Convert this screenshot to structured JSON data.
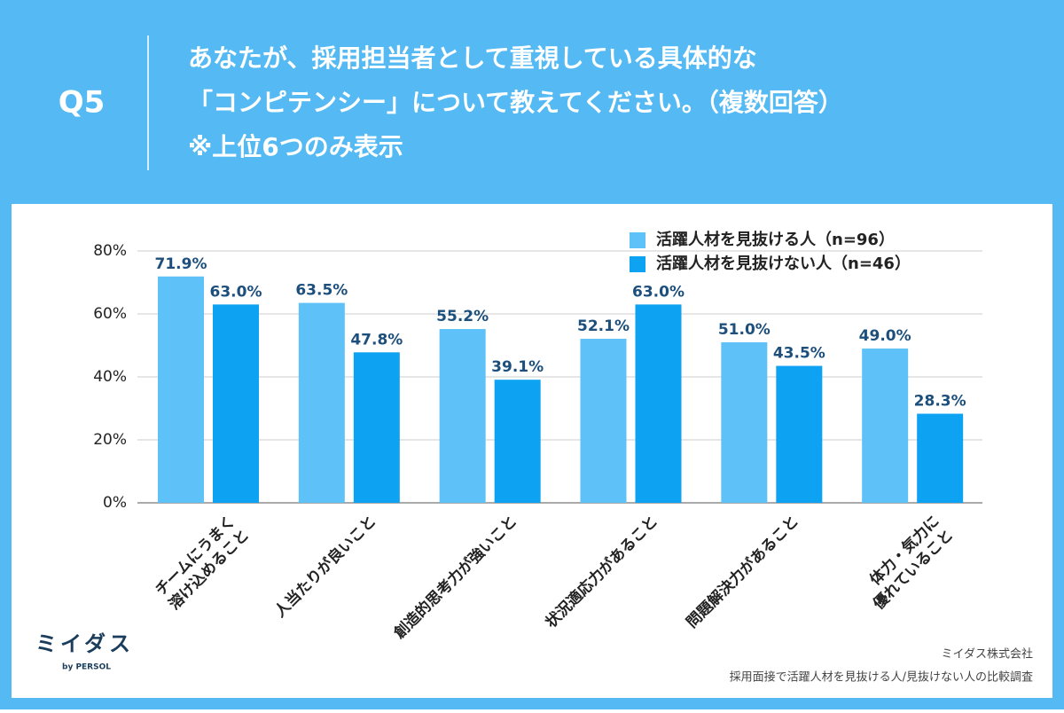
{
  "header": {
    "question": "Q5",
    "title_lines": [
      "あなたが、採用担当者として重視している具体的な",
      "「コンピテンシー」について教えてください。（複数回答）",
      "※上位6つのみ表示"
    ]
  },
  "chart_data": {
    "type": "bar",
    "categories": [
      [
        "チームにうまく",
        "溶け込めること"
      ],
      [
        "人当たりが良いこと"
      ],
      [
        "創造的思考力が強いこと"
      ],
      [
        "状況適応力があること"
      ],
      [
        "問題解決力があること"
      ],
      [
        "体力・気力に",
        "優れていること"
      ]
    ],
    "series": [
      {
        "name": "活躍人材を見抜ける人（n=96）",
        "color": "#5ec2f8",
        "values": [
          71.9,
          63.5,
          55.2,
          52.1,
          51.0,
          49.0
        ],
        "value_labels": [
          "71.9%",
          "63.5%",
          "55.2%",
          "52.1%",
          "51.0%",
          "49.0%"
        ]
      },
      {
        "name": "活躍人材を見抜けない人（n=46）",
        "color": "#0ea2f2",
        "values": [
          63.0,
          47.8,
          39.1,
          63.0,
          43.5,
          28.3
        ],
        "value_labels": [
          "63.0%",
          "47.8%",
          "39.1%",
          "63.0%",
          "43.5%",
          "28.3%"
        ]
      }
    ],
    "ylim": [
      0,
      80
    ],
    "yticks": [
      {
        "value": 0,
        "label": "0%"
      },
      {
        "value": 20,
        "label": "20%"
      },
      {
        "value": 40,
        "label": "40%"
      },
      {
        "value": 60,
        "label": "60%"
      },
      {
        "value": 80,
        "label": "80%"
      }
    ],
    "grid": true,
    "legend": "top-right"
  },
  "footer": {
    "logo": "ミイダス",
    "logo_sub": "by PERSOL",
    "company": "ミイダス株式会社",
    "survey": "採用面接で活躍人材を見抜ける人/見抜けない人の比較調査"
  }
}
